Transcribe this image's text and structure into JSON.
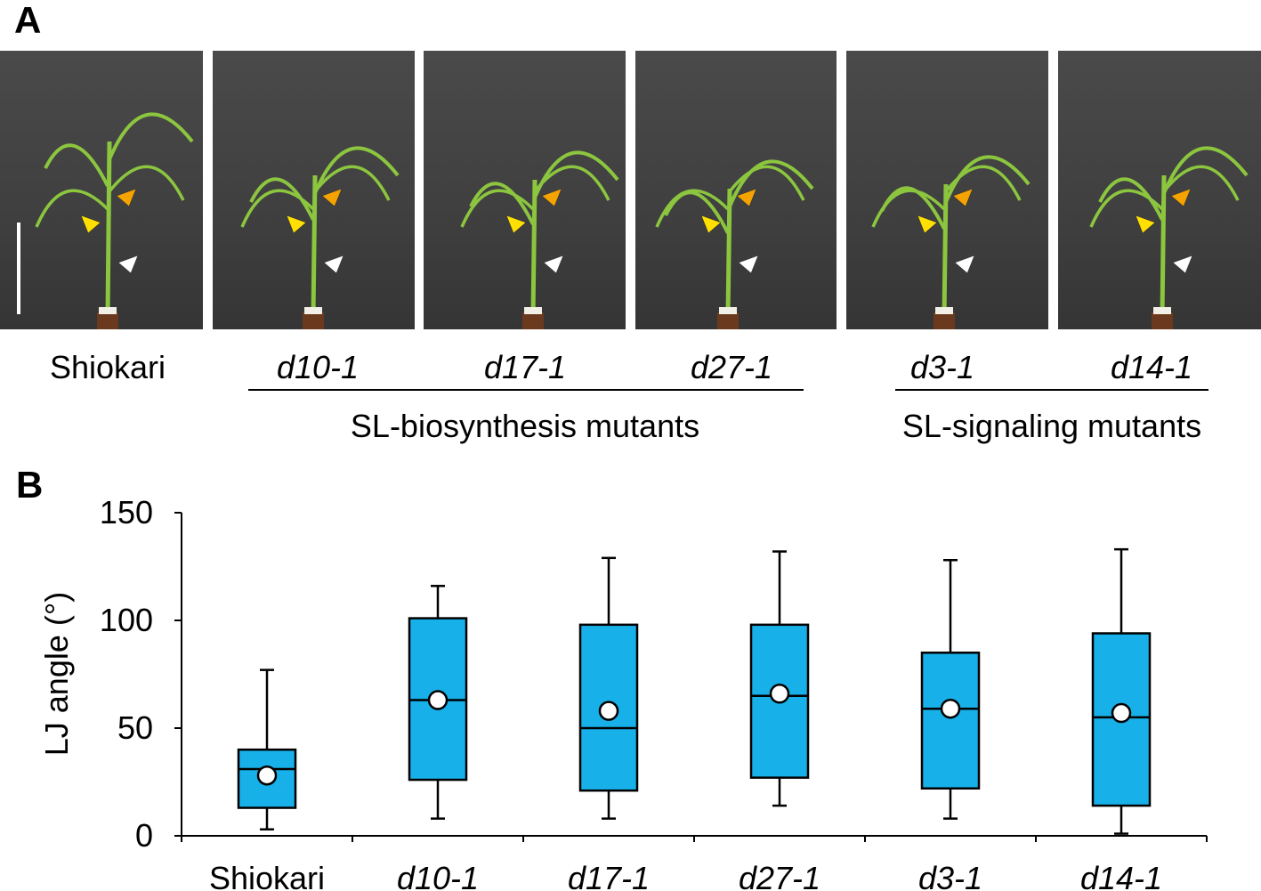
{
  "panels": {
    "a_label": "A",
    "b_label": "B"
  },
  "photos": [
    {
      "genotype": "Shiokari",
      "italic": false
    },
    {
      "genotype": "d10-1",
      "italic": true
    },
    {
      "genotype": "d17-1",
      "italic": true
    },
    {
      "genotype": "d27-1",
      "italic": true
    },
    {
      "genotype": "d3-1",
      "italic": true
    },
    {
      "genotype": "d14-1",
      "italic": true
    }
  ],
  "groups": {
    "biosynthesis": "SL-biosynthesis mutants",
    "signaling": "SL-signaling mutants"
  },
  "colors": {
    "box_fill": "#18b0e8",
    "leaf_green": "#8cc63f",
    "arrow_yellow": "#ffe000",
    "arrow_orange": "#f5a300",
    "arrow_white": "#ffffff"
  },
  "chart_data": {
    "type": "box",
    "ylabel": "LJ angle (°)",
    "ylim": [
      0,
      150
    ],
    "yticks": [
      0,
      50,
      100,
      150
    ],
    "categories": [
      "Shiokari",
      "d10-1",
      "d17-1",
      "d27-1",
      "d3-1",
      "d14-1"
    ],
    "italic_categories": [
      false,
      true,
      true,
      true,
      true,
      true
    ],
    "boxes": [
      {
        "min": 3,
        "q1": 13,
        "median": 31,
        "q3": 40,
        "max": 77,
        "mean": 28
      },
      {
        "min": 8,
        "q1": 26,
        "median": 63,
        "q3": 101,
        "max": 116,
        "mean": 63
      },
      {
        "min": 8,
        "q1": 21,
        "median": 50,
        "q3": 98,
        "max": 129,
        "mean": 58
      },
      {
        "min": 14,
        "q1": 27,
        "median": 65,
        "q3": 98,
        "max": 132,
        "mean": 66
      },
      {
        "min": 8,
        "q1": 22,
        "median": 59,
        "q3": 85,
        "max": 128,
        "mean": 59
      },
      {
        "min": 1,
        "q1": 14,
        "median": 55,
        "q3": 94,
        "max": 133,
        "mean": 57
      }
    ]
  }
}
